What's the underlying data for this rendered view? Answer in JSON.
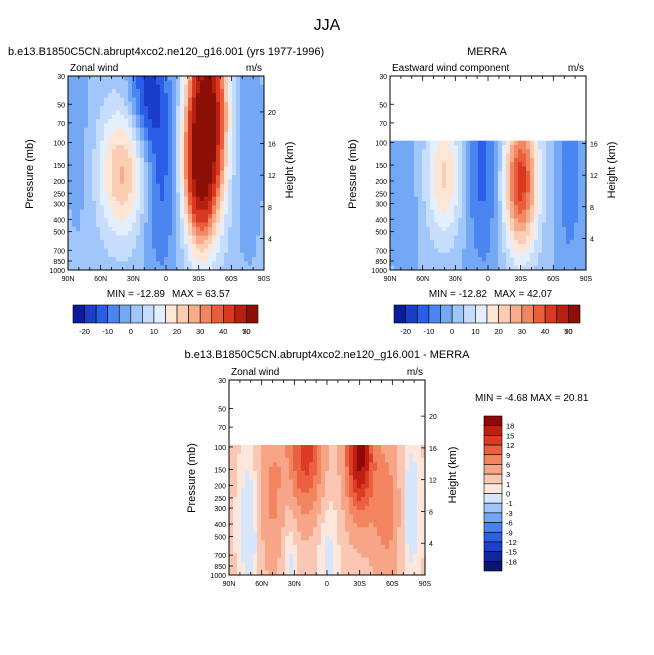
{
  "figure_title": "JJA",
  "chart_data": [
    {
      "type": "heatmap",
      "title": "b.e13.B1850C5CN.abrupt4xco2.ne120_g16.001 (yrs 1977-1996)",
      "left_label": "Zonal wind",
      "units": "m/s",
      "xlabel": "",
      "ylabel": "Pressure (mb)",
      "y2label": "Height (km)",
      "x_ticks": [
        "90N",
        "60N",
        "30N",
        "0",
        "30S",
        "60S",
        "90S"
      ],
      "y_ticks": [
        "30",
        "50",
        "70",
        "100",
        "150",
        "200",
        "250",
        "300",
        "400",
        "500",
        "700",
        "850",
        "1000"
      ],
      "y2_ticks": [
        "20",
        "16",
        "12",
        "8",
        "4"
      ],
      "xlim": [
        90,
        -90
      ],
      "ylim": [
        1000,
        30
      ],
      "min_label": "MIN = -12.89",
      "max_label": "MAX = 63.57",
      "data_min": -12.89,
      "data_max": 63.57,
      "colorbar_levels": [
        "-20",
        "-10",
        "0",
        "10",
        "20",
        "30",
        "40",
        "50",
        "70"
      ],
      "field": {
        "top_pressure": 30,
        "features": [
          {
            "lat": -38,
            "p": 60,
            "amp": 65,
            "wlat": 12,
            "wlnp": 1.2
          },
          {
            "lat": -30,
            "p": 180,
            "amp": 38,
            "wlat": 10,
            "wlnp": 0.9
          },
          {
            "lat": 40,
            "p": 170,
            "amp": 24,
            "wlat": 15,
            "wlnp": 0.8
          },
          {
            "lat": 5,
            "p": 180,
            "amp": -14,
            "wlat": 12,
            "wlnp": 1.4
          },
          {
            "lat": 18,
            "p": 40,
            "amp": -16,
            "wlat": 12,
            "wlnp": 0.7
          },
          {
            "lat": -75,
            "p": 100,
            "amp": -6,
            "wlat": 10,
            "wlnp": 1.5
          },
          {
            "lat": 80,
            "p": 100,
            "amp": -4,
            "wlat": 10,
            "wlnp": 1.5
          }
        ],
        "base": 2
      }
    },
    {
      "type": "heatmap",
      "title": "MERRA",
      "left_label": "Eastward wind component",
      "units": "m/s",
      "xlabel": "",
      "ylabel": "Pressure (mb)",
      "y2label": "Height (km)",
      "x_ticks": [
        "90N",
        "60N",
        "30N",
        "0",
        "30S",
        "60S",
        "90S"
      ],
      "y_ticks": [
        "30",
        "50",
        "70",
        "100",
        "150",
        "200",
        "250",
        "300",
        "400",
        "500",
        "700",
        "850",
        "1000"
      ],
      "y2_ticks": [
        "16",
        "12",
        "8",
        "4"
      ],
      "xlim": [
        90,
        -90
      ],
      "ylim": [
        1000,
        30
      ],
      "min_label": "MIN = -12.82",
      "max_label": "MAX = 42.07",
      "data_min": -12.82,
      "data_max": 42.07,
      "colorbar_levels": [
        "-20",
        "-10",
        "0",
        "10",
        "20",
        "30",
        "40",
        "50",
        "70"
      ],
      "field": {
        "top_pressure": 100,
        "features": [
          {
            "lat": -30,
            "p": 200,
            "amp": 42,
            "wlat": 11,
            "wlnp": 0.9
          },
          {
            "lat": 40,
            "p": 180,
            "amp": 20,
            "wlat": 12,
            "wlnp": 0.8
          },
          {
            "lat": 5,
            "p": 150,
            "amp": -13,
            "wlat": 12,
            "wlnp": 1.4
          },
          {
            "lat": -75,
            "p": 200,
            "amp": -8,
            "wlat": 10,
            "wlnp": 1.5
          },
          {
            "lat": 75,
            "p": 200,
            "amp": -4,
            "wlat": 10,
            "wlnp": 1.5
          }
        ],
        "base": 1
      }
    },
    {
      "type": "heatmap",
      "title": "b.e13.B1850C5CN.abrupt4xco2.ne120_g16.001 - MERRA",
      "left_label": "Zonal wind",
      "units": "m/s",
      "xlabel": "",
      "ylabel": "Pressure (mb)",
      "y2label": "Height (km)",
      "x_ticks": [
        "90N",
        "60N",
        "30N",
        "0",
        "30S",
        "60S",
        "90S"
      ],
      "y_ticks": [
        "30",
        "50",
        "70",
        "100",
        "150",
        "200",
        "250",
        "300",
        "400",
        "500",
        "700",
        "850",
        "1000"
      ],
      "y2_ticks": [
        "20",
        "16",
        "12",
        "8",
        "4"
      ],
      "xlim": [
        90,
        -90
      ],
      "ylim": [
        1000,
        30
      ],
      "minmax_label": "MIN = -4.68  MAX = 20.81",
      "data_min": -4.68,
      "data_max": 20.81,
      "colorbar_levels": [
        "18",
        "15",
        "12",
        "9",
        "6",
        "3",
        "1",
        "0",
        "-1",
        "-3",
        "-6",
        "-9",
        "-12",
        "-15",
        "-18"
      ],
      "field": {
        "top_pressure": 100,
        "features": [
          {
            "lat": -30,
            "p": 110,
            "amp": 18,
            "wlat": 9,
            "wlnp": 0.8
          },
          {
            "lat": 20,
            "p": 110,
            "amp": 12,
            "wlat": 12,
            "wlnp": 0.8
          },
          {
            "lat": 50,
            "p": 250,
            "amp": 5,
            "wlat": 10,
            "wlnp": 1.0
          },
          {
            "lat": -55,
            "p": 300,
            "amp": 6,
            "wlat": 10,
            "wlnp": 1.0
          },
          {
            "lat": 70,
            "p": 400,
            "amp": -3,
            "wlat": 8,
            "wlnp": 1.0
          },
          {
            "lat": 35,
            "p": 450,
            "amp": -3,
            "wlat": 6,
            "wlnp": 1.2
          },
          {
            "lat": 0,
            "p": 500,
            "amp": -2,
            "wlat": 8,
            "wlnp": 1.2
          },
          {
            "lat": -75,
            "p": 300,
            "amp": -3,
            "wlat": 8,
            "wlnp": 1.0
          }
        ],
        "base": 1.5
      }
    }
  ],
  "palettes": {
    "wind": [
      "#0a1c9a",
      "#1a3ec8",
      "#2b5ee6",
      "#4a85f0",
      "#74a8f5",
      "#a0c6fa",
      "#c6ddfc",
      "#e4effd",
      "#fde6d6",
      "#fbcdb2",
      "#f7ab8a",
      "#f28662",
      "#ea5d3d",
      "#d8391f",
      "#b52010",
      "#8c1008"
    ],
    "diff": [
      "#0a1670",
      "#10259e",
      "#1c3fcc",
      "#2d5ee6",
      "#4b80f0",
      "#76a4f5",
      "#a1c4fa",
      "#d6e7fd",
      "#fde7dc",
      "#fac7b4",
      "#f6a686",
      "#f2855f",
      "#ea6040",
      "#dc3b24",
      "#c01e12",
      "#8e0808"
    ]
  }
}
